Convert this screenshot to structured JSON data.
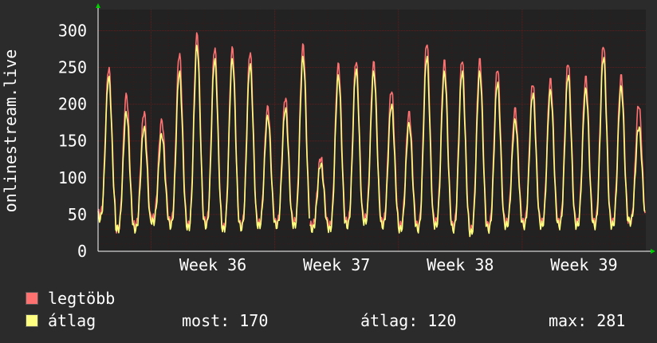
{
  "chart_data": {
    "type": "line",
    "ylabel": "onlinestream.live",
    "xlabel": "",
    "ylim": [
      0,
      320
    ],
    "yticks": [
      0,
      50,
      100,
      150,
      200,
      250,
      300
    ],
    "x_ticks": [
      "Week 36",
      "Week 37",
      "Week 38",
      "Week 39"
    ],
    "grid": true,
    "legend_placement": "bottom-left",
    "series": [
      {
        "name": "legtöbb",
        "color": "#ff7070",
        "daily": [
          {
            "max": 250,
            "min": 50
          },
          {
            "max": 215,
            "min": 30
          },
          {
            "max": 190,
            "min": 35
          },
          {
            "max": 180,
            "min": 45
          },
          {
            "max": 270,
            "min": 40
          },
          {
            "max": 297,
            "min": 35
          },
          {
            "max": 278,
            "min": 40
          },
          {
            "max": 278,
            "min": 32
          },
          {
            "max": 272,
            "min": 35
          },
          {
            "max": 198,
            "min": 38
          },
          {
            "max": 210,
            "min": 38
          },
          {
            "max": 282,
            "min": 40
          },
          {
            "max": 128,
            "min": 35
          },
          {
            "max": 256,
            "min": 35
          },
          {
            "max": 260,
            "min": 40
          },
          {
            "max": 258,
            "min": 45
          },
          {
            "max": 220,
            "min": 40
          },
          {
            "max": 190,
            "min": 35
          },
          {
            "max": 285,
            "min": 35
          },
          {
            "max": 260,
            "min": 40
          },
          {
            "max": 262,
            "min": 35
          },
          {
            "max": 262,
            "min": 30
          },
          {
            "max": 250,
            "min": 35
          },
          {
            "max": 195,
            "min": 40
          },
          {
            "max": 230,
            "min": 40
          },
          {
            "max": 235,
            "min": 40
          },
          {
            "max": 258,
            "min": 40
          },
          {
            "max": 238,
            "min": 40
          },
          {
            "max": 282,
            "min": 40
          },
          {
            "max": 240,
            "min": 40
          },
          {
            "max": 200,
            "min": 40
          }
        ]
      },
      {
        "name": "átlag",
        "color": "#ffff80",
        "daily": [
          {
            "max": 238,
            "min": 45
          },
          {
            "max": 190,
            "min": 30
          },
          {
            "max": 170,
            "min": 30
          },
          {
            "max": 160,
            "min": 40
          },
          {
            "max": 245,
            "min": 35
          },
          {
            "max": 280,
            "min": 32
          },
          {
            "max": 262,
            "min": 35
          },
          {
            "max": 262,
            "min": 30
          },
          {
            "max": 255,
            "min": 32
          },
          {
            "max": 185,
            "min": 35
          },
          {
            "max": 195,
            "min": 35
          },
          {
            "max": 265,
            "min": 35
          },
          {
            "max": 120,
            "min": 30
          },
          {
            "max": 240,
            "min": 30
          },
          {
            "max": 248,
            "min": 35
          },
          {
            "max": 245,
            "min": 40
          },
          {
            "max": 200,
            "min": 35
          },
          {
            "max": 175,
            "min": 30
          },
          {
            "max": 265,
            "min": 30
          },
          {
            "max": 245,
            "min": 35
          },
          {
            "max": 245,
            "min": 30
          },
          {
            "max": 245,
            "min": 25
          },
          {
            "max": 230,
            "min": 30
          },
          {
            "max": 180,
            "min": 35
          },
          {
            "max": 215,
            "min": 35
          },
          {
            "max": 220,
            "min": 35
          },
          {
            "max": 240,
            "min": 35
          },
          {
            "max": 222,
            "min": 35
          },
          {
            "max": 265,
            "min": 35
          },
          {
            "max": 225,
            "min": 35
          },
          {
            "max": 170,
            "min": 40
          }
        ]
      }
    ],
    "gaps_days": [
      12,
      24
    ]
  },
  "legend": [
    {
      "label": "legtöbb",
      "color": "#ff7070"
    },
    {
      "label": "átlag",
      "color": "#ffff80"
    }
  ],
  "stats": {
    "now": "most: 170",
    "avg": "átlag: 120",
    "max": "max: 281"
  },
  "colors": {
    "background": "#2b2b2b",
    "plot_background": "#222222",
    "grid_minor": "#3a1a1a",
    "grid_major": "#5a2020",
    "axis": "#ffffff",
    "arrow": "#00d000"
  }
}
